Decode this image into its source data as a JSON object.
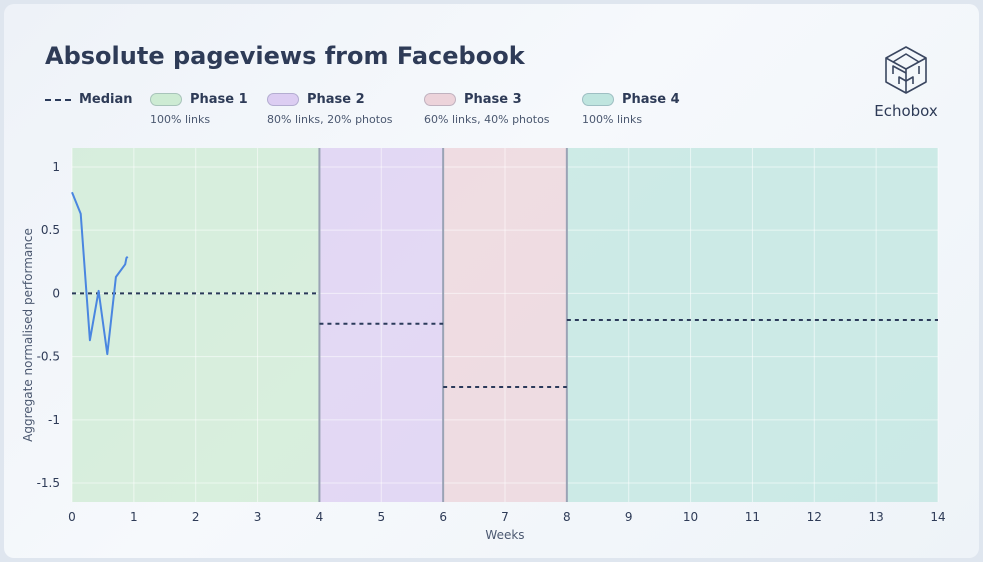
{
  "colors": {
    "line": "#4a86e0",
    "median": "#2b3a5a",
    "phase1": "#cdebd3",
    "phase2": "#dccdf2",
    "phase3": "#ecd3da",
    "phase4": "#bfe5df"
  },
  "logo": {
    "icon": "echobox-cube-icon",
    "text": "Echobox"
  },
  "legend": {
    "median_label": "Median",
    "phases": [
      {
        "name": "Phase 1",
        "desc": "100% links"
      },
      {
        "name": "Phase 2",
        "desc": "80% links, 20% photos"
      },
      {
        "name": "Phase 3",
        "desc": "60% links, 40% photos"
      },
      {
        "name": "Phase 4",
        "desc": "100% links"
      }
    ]
  },
  "chart_data": {
    "type": "line",
    "title": "Absolute pageviews from Facebook",
    "xlabel": "Weeks",
    "ylabel": "Aggregate normalised performance",
    "xlim": [
      0,
      14
    ],
    "ylim": [
      -1.65,
      1.15
    ],
    "x_ticks": [
      "0",
      "1",
      "2",
      "3",
      "4",
      "5",
      "6",
      "7",
      "8",
      "9",
      "10",
      "11",
      "12",
      "13",
      "14"
    ],
    "y_ticks": [
      {
        "value": 1,
        "label": "1"
      },
      {
        "value": 0.5,
        "label": "0.5"
      },
      {
        "value": 0,
        "label": "0"
      },
      {
        "value": -0.5,
        "label": "-0.5"
      },
      {
        "value": -1,
        "label": "-1"
      },
      {
        "value": -1.5,
        "label": "-1.5"
      }
    ],
    "grid": true,
    "phases": [
      {
        "name": "Phase 1",
        "start": 0,
        "end": 4
      },
      {
        "name": "Phase 2",
        "start": 4,
        "end": 6
      },
      {
        "name": "Phase 3",
        "start": 6,
        "end": 8
      },
      {
        "name": "Phase 4",
        "start": 8,
        "end": 14
      }
    ],
    "medians": [
      {
        "start": 0,
        "end": 4,
        "value": 0.0
      },
      {
        "start": 4,
        "end": 6,
        "value": -0.24
      },
      {
        "start": 6,
        "end": 8,
        "value": -0.74
      },
      {
        "start": 8,
        "end": 14,
        "value": -0.21
      }
    ],
    "series": [
      {
        "points": [
          [
            0.0,
            0.8
          ],
          [
            0.14,
            0.63
          ],
          [
            0.29,
            -0.37
          ],
          [
            0.43,
            0.02
          ],
          [
            0.57,
            -0.48
          ],
          [
            0.71,
            0.13
          ],
          [
            0.86,
            0.23
          ],
          [
            0.88,
            0.28
          ],
          [
            0.9,
            0.29
          ],
          [
            0.9,
            0.29
          ],
          [
            0.9,
            0.29
          ],
          [
            0.9,
            0.29
          ],
          [
            0.9,
            0.29
          ],
          [
            0.9,
            0.29
          ],
          [
            0.9,
            0.29
          ],
          [
            0.9,
            0.29
          ],
          [
            0.9,
            0.29
          ],
          [
            0.9,
            0.29
          ],
          [
            0.9,
            0.29
          ],
          [
            0.9,
            0.29
          ],
          [
            0.9,
            0.29
          ],
          [
            0.9,
            0.29
          ],
          [
            0.9,
            0.29
          ],
          [
            0.9,
            0.29
          ],
          [
            0.9,
            0.29
          ],
          [
            0.9,
            0.29
          ],
          [
            0.9,
            0.29
          ],
          [
            0.9,
            0.29
          ],
          [
            0.9,
            0.29
          ],
          [
            0.9,
            0.29
          ],
          [
            0.9,
            0.29
          ],
          [
            0.9,
            0.29
          ],
          [
            0.9,
            0.29
          ],
          [
            0.9,
            0.29
          ],
          [
            0.9,
            0.29
          ],
          [
            0.9,
            0.29
          ],
          [
            0.9,
            0.29
          ],
          [
            0.9,
            0.29
          ],
          [
            0.9,
            0.29
          ],
          [
            0.9,
            0.29
          ],
          [
            0.9,
            0.29
          ],
          [
            0.9,
            0.29
          ],
          [
            0.9,
            0.29
          ],
          [
            0.9,
            0.29
          ],
          [
            0.9,
            0.29
          ],
          [
            0.9,
            0.29
          ],
          [
            0.9,
            0.29
          ],
          [
            0.9,
            0.29
          ],
          [
            0.9,
            0.29
          ],
          [
            0.9,
            0.29
          ],
          [
            0.9,
            0.29
          ],
          [
            0.9,
            0.29
          ],
          [
            0.9,
            0.29
          ],
          [
            0.9,
            0.29
          ],
          [
            0.9,
            0.29
          ],
          [
            0.9,
            0.29
          ],
          [
            0.9,
            0.29
          ],
          [
            0.9,
            0.29
          ],
          [
            0.9,
            0.29
          ],
          [
            0.9,
            0.29
          ],
          [
            0.9,
            0.29
          ],
          [
            0.9,
            0.29
          ],
          [
            0.9,
            0.29
          ],
          [
            0.9,
            0.29
          ],
          [
            0.9,
            0.29
          ],
          [
            0.9,
            0.29
          ],
          [
            0.9,
            0.29
          ],
          [
            0.9,
            0.29
          ],
          [
            0.9,
            0.29
          ],
          [
            0.9,
            0.29
          ],
          [
            0.9,
            0.29
          ],
          [
            0.9,
            0.29
          ],
          [
            0.9,
            0.29
          ],
          [
            0.9,
            0.29
          ],
          [
            0.9,
            0.29
          ],
          [
            0.9,
            0.29
          ],
          [
            0.9,
            0.29
          ],
          [
            0.9,
            0.29
          ],
          [
            0.9,
            0.29
          ],
          [
            0.9,
            0.29
          ],
          [
            0.9,
            0.29
          ],
          [
            0.9,
            0.29
          ],
          [
            0.9,
            0.29
          ],
          [
            0.9,
            0.29
          ],
          [
            0.9,
            0.29
          ],
          [
            0.9,
            0.29
          ],
          [
            0.9,
            0.29
          ],
          [
            0.9,
            0.29
          ],
          [
            0.9,
            0.29
          ],
          [
            0.9,
            0.29
          ],
          [
            0.9,
            0.29
          ],
          [
            0.9,
            0.29
          ],
          [
            0.9,
            0.29
          ],
          [
            0.9,
            0.29
          ],
          [
            0.9,
            0.29
          ],
          [
            0.9,
            0.29
          ],
          [
            0.9,
            0.29
          ],
          [
            0.9,
            0.29
          ],
          [
            0.9,
            0.29
          ],
          [
            0.9,
            0.29
          ],
          [
            0.9,
            0.29
          ],
          [
            0.9,
            0.29
          ],
          [
            0.9,
            0.29
          ],
          [
            0.9,
            0.29
          ],
          [
            0.9,
            0.29
          ],
          [
            0.9,
            0.29
          ],
          [
            0.9,
            0.29
          ],
          [
            0.9,
            0.29
          ],
          [
            0.9,
            0.29
          ],
          [
            0.9,
            0.29
          ],
          [
            0.9,
            0.29
          ],
          [
            0.9,
            0.29
          ],
          [
            0.9,
            0.29
          ],
          [
            0.9,
            0.29
          ],
          [
            0.9,
            0.29
          ],
          [
            0.9,
            0.29
          ],
          [
            0.9,
            0.29
          ],
          [
            0.9,
            0.29
          ],
          [
            0.9,
            0.29
          ],
          [
            0.9,
            0.29
          ],
          [
            0.9,
            0.29
          ],
          [
            0.9,
            0.29
          ],
          [
            0.9,
            0.29
          ]
        ]
      }
    ]
  }
}
